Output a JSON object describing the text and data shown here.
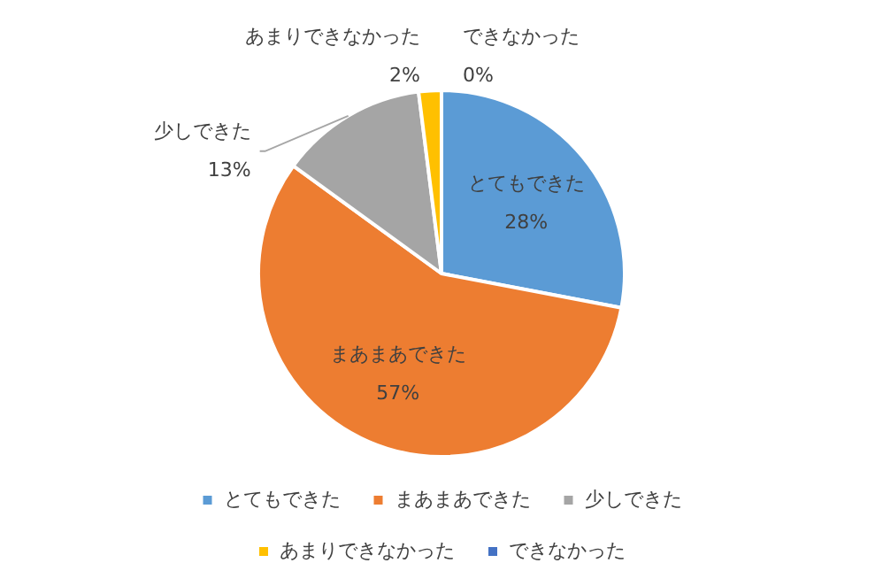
{
  "chart_data": {
    "type": "pie",
    "categories": [
      "とてもできた",
      "まあまあできた",
      "少しできた",
      "あまりできなかった",
      "できなかった"
    ],
    "values": [
      28,
      57,
      13,
      2,
      0
    ],
    "value_labels": [
      "28%",
      "57%",
      "13%",
      "2%",
      "0%"
    ],
    "colors": [
      "#5b9bd5",
      "#ed7d31",
      "#a5a5a5",
      "#ffc000",
      "#4472c4"
    ],
    "legend": "bottom"
  }
}
